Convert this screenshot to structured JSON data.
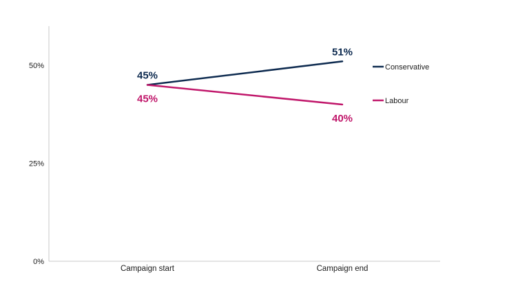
{
  "chart_data": {
    "type": "line",
    "title": "",
    "xlabel": "",
    "ylabel": "",
    "categories": [
      "Campaign start",
      "Campaign end"
    ],
    "ylim": [
      0,
      60
    ],
    "yticks": [
      {
        "value": 0,
        "label": "0%"
      },
      {
        "value": 25,
        "label": "25%"
      },
      {
        "value": 50,
        "label": "50%"
      }
    ],
    "grid": false,
    "legend_position": "right",
    "series": [
      {
        "name": "Conservative",
        "color": "#0d2a4f",
        "values": [
          45,
          51
        ],
        "labels": [
          "45%",
          "51%"
        ]
      },
      {
        "name": "Labour",
        "color": "#c0166a",
        "values": [
          45,
          40
        ],
        "labels": [
          "45%",
          "40%"
        ]
      }
    ]
  }
}
